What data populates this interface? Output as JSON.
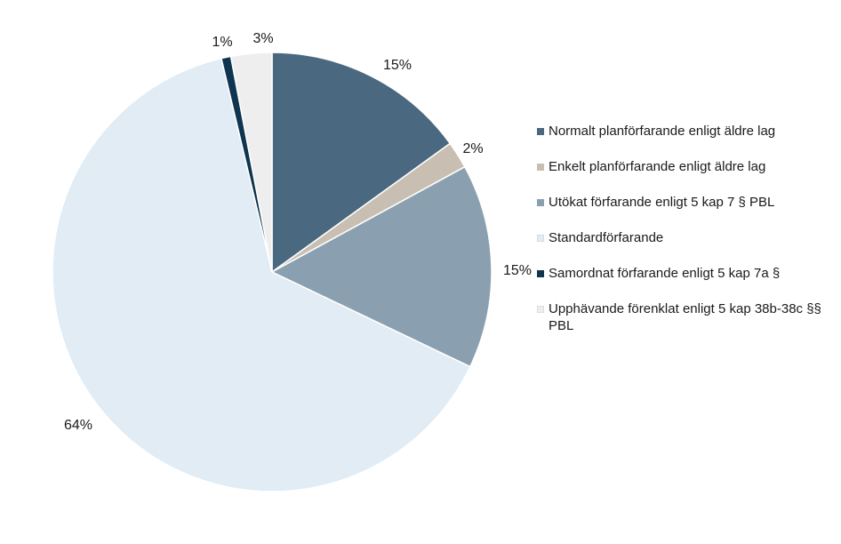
{
  "chart_data": {
    "type": "pie",
    "title": "",
    "legend_position": "right",
    "slices": [
      {
        "label": "Normalt planförfarande enligt äldre lag",
        "value": 15,
        "value_label": "15%",
        "color": "#4a6880"
      },
      {
        "label": "Enkelt planförfarande enligt äldre lag",
        "value": 2,
        "value_label": "2%",
        "color": "#c8bfb2"
      },
      {
        "label": "Utökat förfarande enligt 5 kap 7 § PBL",
        "value": 15,
        "value_label": "15%",
        "color": "#8aa0b0"
      },
      {
        "label": "Standardförfarande",
        "value": 64,
        "value_label": "64%",
        "color": "#e1ecf4"
      },
      {
        "label": "Samordnat förfarande enligt 5 kap 7a §",
        "value": 0.7,
        "value_label": "1%",
        "color": "#0f3550"
      },
      {
        "label": "Upphävande förenklat enligt 5 kap 38b-38c §§ PBL",
        "value": 3,
        "value_label": "3%",
        "color": "#eeeeee"
      }
    ]
  }
}
